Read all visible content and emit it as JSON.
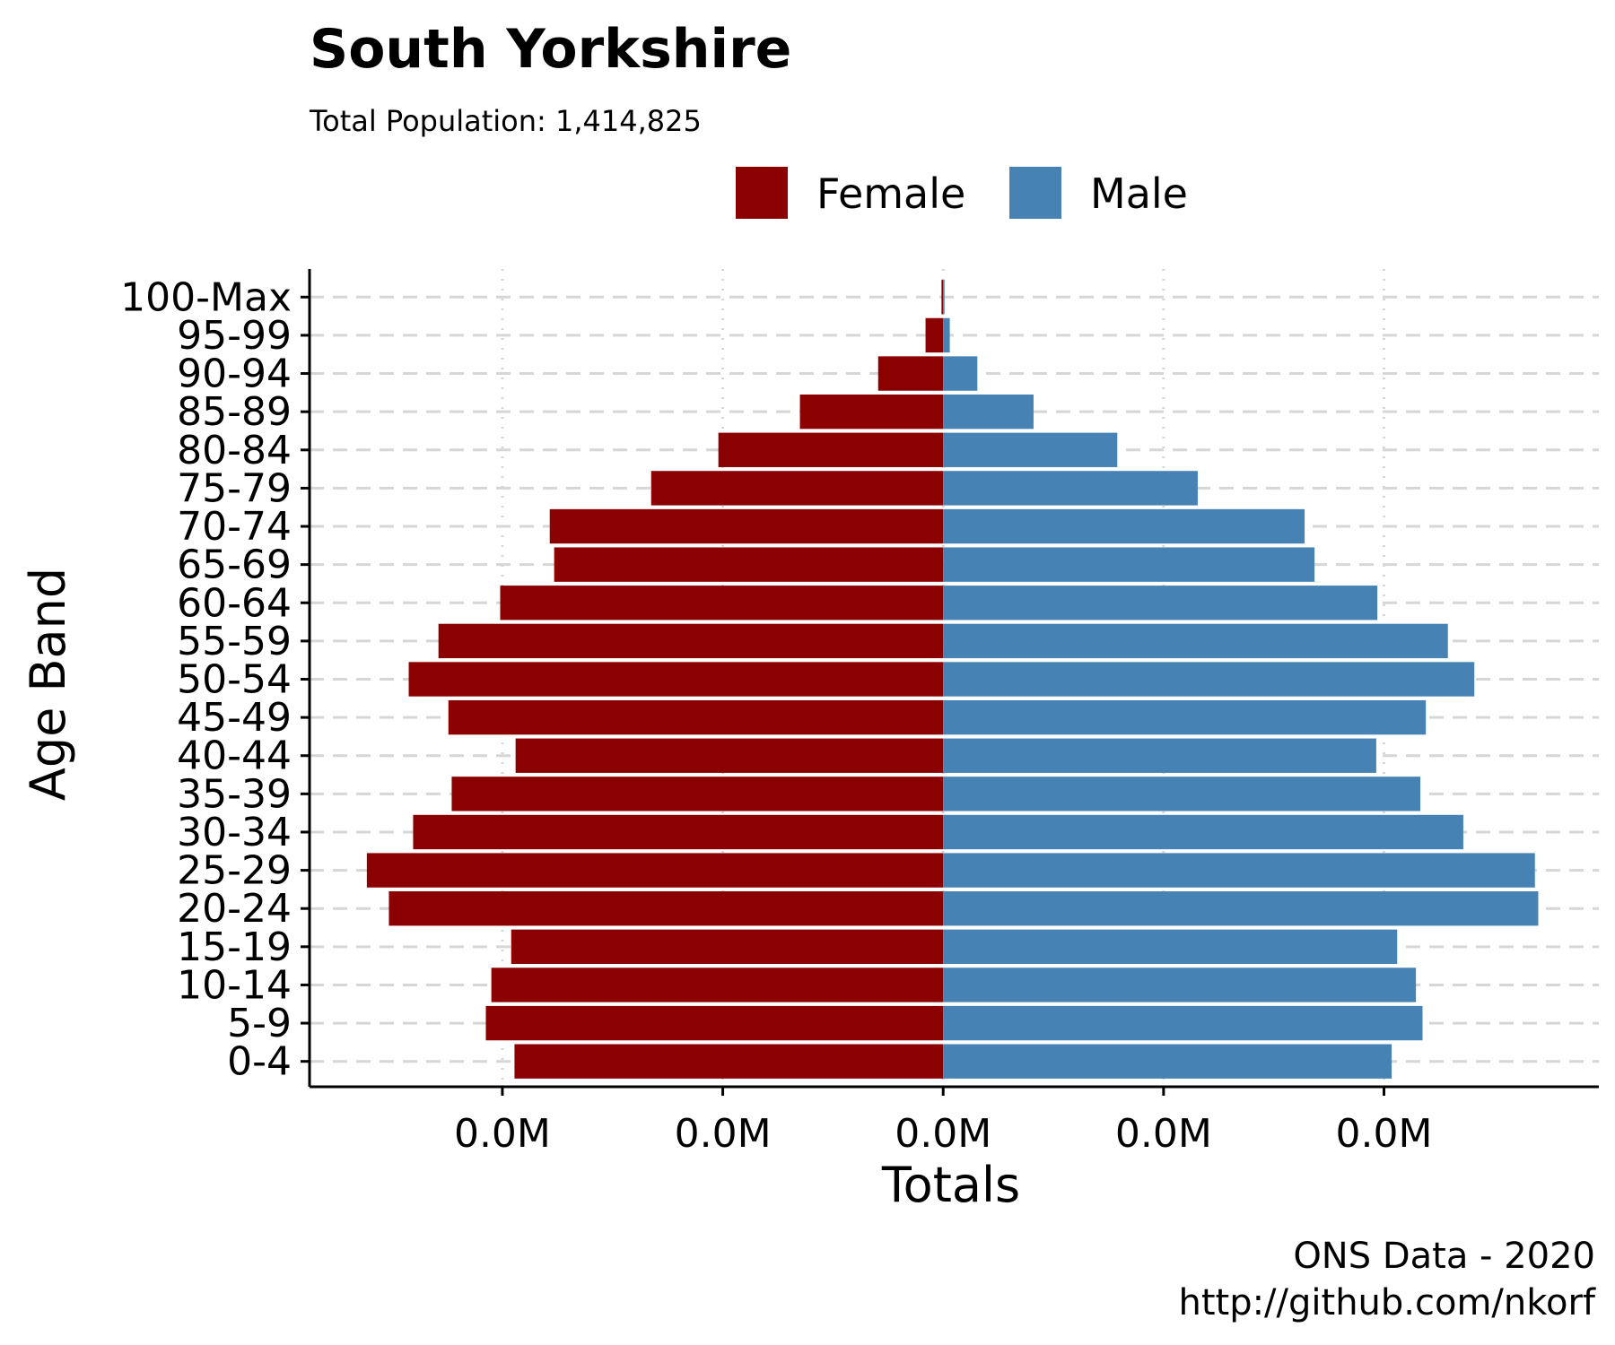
{
  "chart_data": {
    "type": "bar",
    "orientation": "horizontal",
    "layout": "population-pyramid",
    "title": "South Yorkshire",
    "subtitle": "Total Population:  1,414,825",
    "xlabel": "Totals",
    "ylabel": "Age Band",
    "caption_lines": [
      "ONS Data - 2020",
      "http://github.com/nkorf"
    ],
    "x_tick_labels": [
      "0.0M",
      "0.0M",
      "0.0M",
      "0.0M",
      "0.0M"
    ],
    "x_tick_values": [
      -40000,
      -20000,
      0,
      20000,
      40000
    ],
    "xlim": [
      -57500,
      59500
    ],
    "categories": [
      "0-4",
      "5-9",
      "10-14",
      "15-19",
      "20-24",
      "25-29",
      "30-34",
      "35-39",
      "40-44",
      "45-49",
      "50-54",
      "55-59",
      "60-64",
      "65-69",
      "70-74",
      "75-79",
      "80-84",
      "85-89",
      "90-94",
      "95-99",
      "100-Max"
    ],
    "series": [
      {
        "name": "Female",
        "color": "#8b0000",
        "values": [
          -38900,
          -41500,
          -41000,
          -39200,
          -50300,
          -52300,
          -48100,
          -44600,
          -38800,
          -44900,
          -48500,
          -45800,
          -40200,
          -35300,
          -35700,
          -26500,
          -20400,
          -13000,
          -5900,
          -1600,
          -150
        ]
      },
      {
        "name": "Male",
        "color": "#4682b4",
        "values": [
          40700,
          43500,
          42900,
          41200,
          54000,
          53700,
          47200,
          43300,
          39300,
          43800,
          48200,
          45800,
          39400,
          33700,
          32800,
          23100,
          15800,
          8200,
          3100,
          600,
          60
        ]
      }
    ],
    "legend": {
      "position": "top",
      "entries": [
        "Female",
        "Male"
      ]
    },
    "grid": {
      "horizontal": "dashed",
      "vertical": "dotted"
    }
  }
}
